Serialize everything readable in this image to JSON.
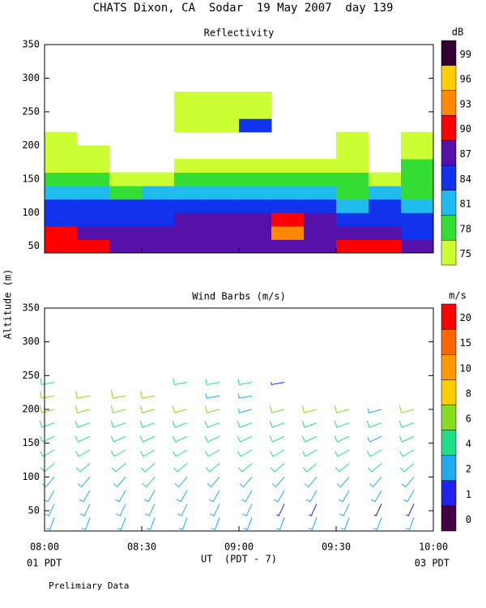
{
  "header": {
    "title": "CHATS Dixon, CA  Sodar  19 May 2007  day 139"
  },
  "chart_data": [
    {
      "type": "heatmap",
      "title": "Reflectivity",
      "x": [
        "08:00",
        "08:10",
        "08:20",
        "08:30",
        "08:40",
        "08:50",
        "09:00",
        "09:10",
        "09:20",
        "09:30",
        "09:40",
        "09:50"
      ],
      "y": [
        40,
        60,
        80,
        100,
        120,
        140,
        160,
        180,
        200,
        220,
        240,
        260
      ],
      "values": [
        [
          90,
          90,
          87,
          87,
          87,
          87,
          87,
          87,
          88,
          90,
          91,
          88
        ],
        [
          90,
          88,
          87,
          87,
          87,
          88,
          88,
          93,
          88,
          87,
          87,
          86
        ],
        [
          85,
          86,
          85,
          86,
          87,
          87,
          87,
          90,
          87,
          86,
          85,
          85
        ],
        [
          84,
          84,
          84,
          85,
          85,
          85,
          85,
          85,
          84,
          83,
          84,
          83
        ],
        [
          82,
          82,
          80,
          81,
          82,
          82,
          82,
          82,
          81,
          80,
          81,
          80
        ],
        [
          79,
          80,
          77,
          77,
          78,
          79,
          79,
          78,
          78,
          78,
          77,
          78
        ],
        [
          76,
          77,
          74,
          74,
          76,
          76,
          76,
          75,
          76,
          75,
          74,
          78
        ],
        [
          76,
          75,
          73,
          73,
          73,
          73,
          73,
          73,
          74,
          75,
          73,
          76
        ],
        [
          75,
          73,
          72,
          72,
          72,
          72,
          72,
          72,
          72,
          75,
          72,
          75
        ],
        [
          72,
          72,
          72,
          72,
          75,
          76,
          86,
          72,
          72,
          72,
          72,
          72
        ],
        [
          72,
          72,
          72,
          72,
          75,
          76,
          76,
          72,
          72,
          72,
          72,
          72
        ],
        [
          72,
          72,
          72,
          72,
          75,
          75,
          75,
          72,
          72,
          72,
          72,
          72
        ]
      ],
      "xlim": [
        "08:00",
        "10:00"
      ],
      "ylim": [
        40,
        350
      ],
      "yticks": [
        50,
        100,
        150,
        200,
        250,
        300,
        350
      ],
      "colorbar": {
        "label": "dB",
        "levels": [
          75,
          78,
          81,
          84,
          87,
          90,
          93,
          96,
          99
        ],
        "colors": [
          "#ccff33",
          "#33dd33",
          "#22bbee",
          "#1133ee",
          "#5511aa",
          "#ff0000",
          "#ff8800",
          "#ffcc00",
          "#330033"
        ]
      }
    },
    {
      "type": "barbs",
      "title": "Wind Barbs (m/s)",
      "ylabel": "Altitude (m)",
      "xlabel": "UT  (PDT - 7)",
      "x_start_note": "01 PDT",
      "x_end_note": "03 PDT",
      "x": [
        "08:03",
        "08:14",
        "08:25",
        "08:34",
        "08:44",
        "08:54",
        "09:04",
        "09:14",
        "09:24",
        "09:34",
        "09:44",
        "09:54"
      ],
      "alt": [
        40,
        60,
        80,
        100,
        120,
        140,
        160,
        180,
        200,
        220,
        240
      ],
      "speed": [
        [
          2.5,
          3,
          3,
          3.5,
          4,
          4.5,
          5,
          5.5,
          6,
          6,
          5
        ],
        [
          2.5,
          3,
          3.5,
          3.5,
          4,
          4.5,
          5,
          5.5,
          6,
          6,
          null
        ],
        [
          2.5,
          3,
          3,
          3.5,
          4,
          5,
          5,
          5.5,
          6,
          7,
          null
        ],
        [
          2.5,
          3,
          3,
          4,
          4,
          4.5,
          5,
          5.5,
          6,
          6,
          null
        ],
        [
          2.5,
          3,
          3.5,
          3.5,
          4,
          4.5,
          5,
          5.5,
          6,
          null,
          5
        ],
        [
          2.5,
          3,
          3,
          3.5,
          4,
          4.5,
          5,
          5.5,
          6,
          3,
          4
        ],
        [
          2.5,
          3,
          3,
          3.5,
          4,
          4.5,
          5,
          5.5,
          3,
          3,
          4
        ],
        [
          2.5,
          1,
          3,
          3.5,
          4,
          4.5,
          5,
          5.5,
          6,
          null,
          1
        ],
        [
          2.5,
          1,
          3,
          3.5,
          4,
          4.5,
          5,
          5.5,
          6,
          null,
          null
        ],
        [
          2.5,
          3,
          3,
          3.5,
          4,
          4.5,
          5,
          5.5,
          6,
          null,
          null
        ],
        [
          2.5,
          0.5,
          3,
          3.5,
          4,
          4.5,
          3,
          5.5,
          3,
          null,
          null
        ],
        [
          2.5,
          1,
          3,
          3.5,
          4,
          4.5,
          5,
          5.5,
          6,
          null,
          null
        ]
      ],
      "dir": [
        200,
        205,
        210,
        220,
        230,
        240,
        245,
        250,
        255,
        260,
        260
      ],
      "xlim": [
        "08:00",
        "10:00"
      ],
      "ylim": [
        20,
        350
      ],
      "yticks": [
        50,
        100,
        150,
        200,
        250,
        300,
        350
      ],
      "xticks": [
        "08:00",
        "08:30",
        "09:00",
        "09:30",
        "10:00"
      ],
      "colorbar": {
        "label": "m/s",
        "levels": [
          0,
          1,
          2,
          4,
          6,
          8,
          10,
          15,
          20
        ],
        "colors": [
          "#440044",
          "#2222ee",
          "#22aaee",
          "#22dd88",
          "#88dd22",
          "#ffcc00",
          "#ff9900",
          "#ff6600",
          "#ff0000"
        ]
      }
    }
  ],
  "footer": {
    "note": "Prelimiary Data"
  }
}
